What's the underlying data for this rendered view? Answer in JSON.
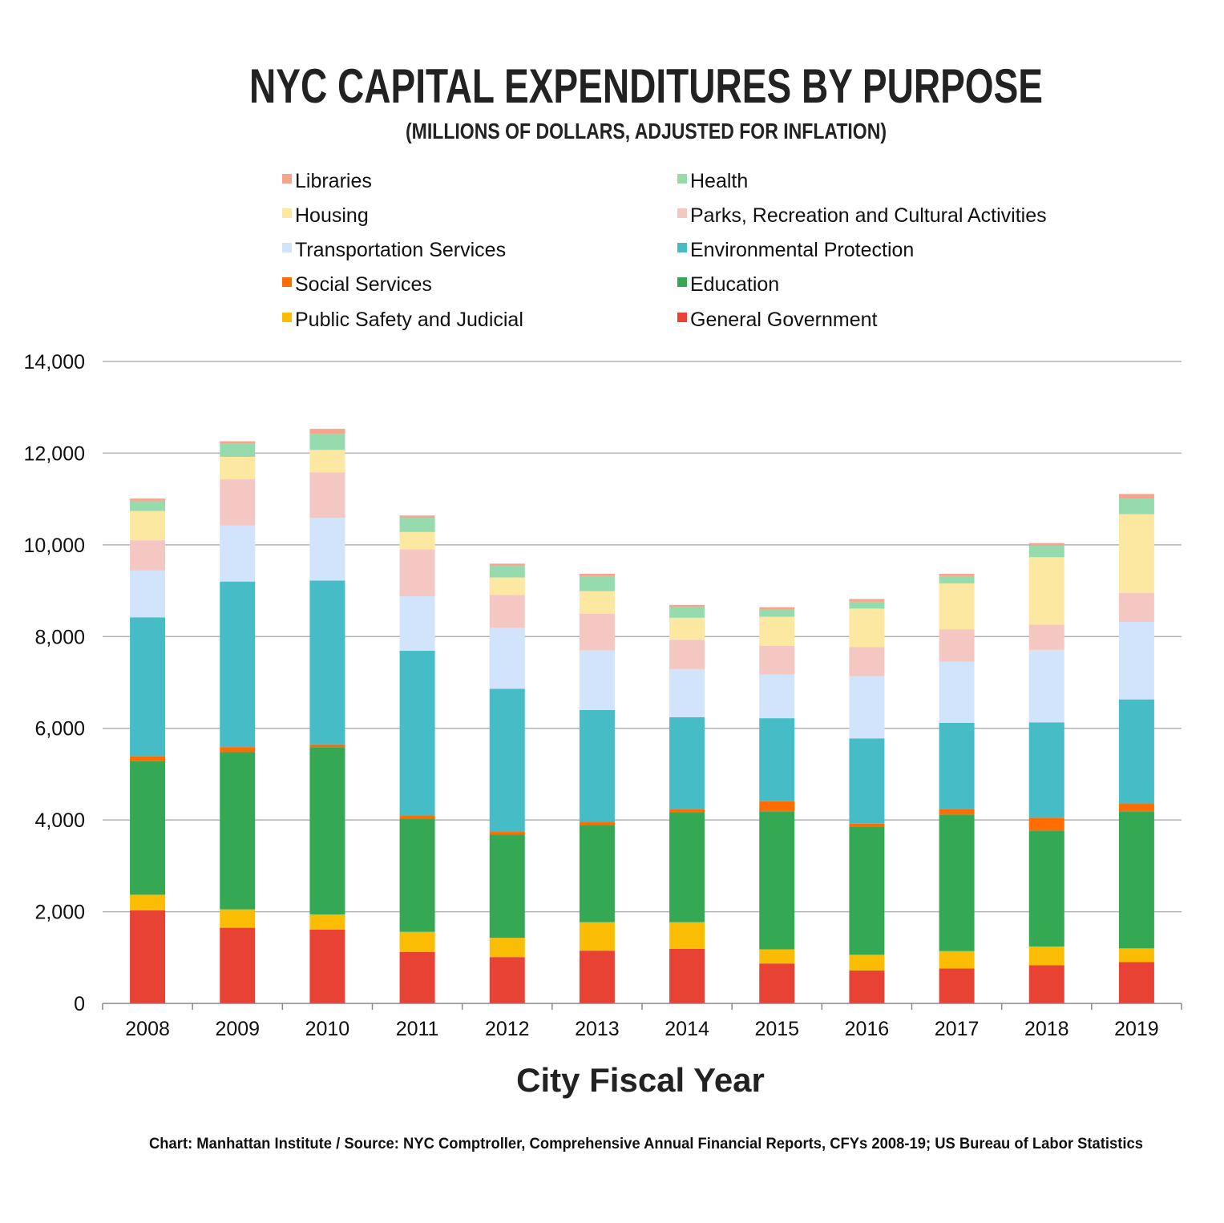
{
  "chart_data": {
    "type": "bar",
    "stacked": true,
    "title": "NYC CAPITAL EXPENDITURES BY PURPOSE",
    "subtitle": "(MILLIONS OF DOLLARS, ADJUSTED FOR INFLATION)",
    "xlabel": "City Fiscal Year",
    "ylabel": "",
    "ylim": [
      0,
      14000
    ],
    "yticks": [
      0,
      2000,
      4000,
      6000,
      8000,
      10000,
      12000,
      14000
    ],
    "ytick_labels": [
      "0",
      "2,000",
      "4,000",
      "6,000",
      "8,000",
      "10,000",
      "12,000",
      "14,000"
    ],
    "grid": true,
    "legend_position": "top",
    "categories": [
      "2008",
      "2009",
      "2010",
      "2011",
      "2012",
      "2013",
      "2014",
      "2015",
      "2016",
      "2017",
      "2018",
      "2019"
    ],
    "series": [
      {
        "name": "General Government",
        "color": "#e84235",
        "values": [
          2030,
          1650,
          1610,
          1120,
          1010,
          1150,
          1190,
          870,
          720,
          760,
          830,
          900
        ]
      },
      {
        "name": "Public Safety and Judicial",
        "color": "#fbbc04",
        "values": [
          340,
          400,
          330,
          440,
          420,
          620,
          580,
          310,
          340,
          380,
          410,
          300
        ]
      },
      {
        "name": "Education",
        "color": "#34a853",
        "values": [
          2920,
          3430,
          3650,
          2470,
          2250,
          2120,
          2400,
          3010,
          2800,
          2980,
          2530,
          2990
        ]
      },
      {
        "name": "Social Services",
        "color": "#ff6d00",
        "values": [
          100,
          110,
          60,
          60,
          60,
          60,
          60,
          220,
          60,
          110,
          280,
          170
        ]
      },
      {
        "name": "Environmental Protection",
        "color": "#46bdc6",
        "values": [
          3030,
          3610,
          3570,
          3600,
          3120,
          2450,
          2010,
          1810,
          1860,
          1890,
          2080,
          2270
        ]
      },
      {
        "name": "Transportation Services",
        "color": "#d2e3fc",
        "values": [
          1020,
          1220,
          1370,
          1190,
          1330,
          1300,
          1050,
          950,
          1360,
          1330,
          1580,
          1690
        ]
      },
      {
        "name": "Parks, Recreation and Cultural Activities",
        "color": "#f4c7c3",
        "values": [
          660,
          1010,
          990,
          1020,
          720,
          800,
          640,
          630,
          630,
          710,
          550,
          630
        ]
      },
      {
        "name": "Housing",
        "color": "#fce8a0",
        "values": [
          640,
          490,
          490,
          380,
          380,
          490,
          480,
          630,
          840,
          1000,
          1470,
          1720
        ]
      },
      {
        "name": "Health",
        "color": "#95dbae",
        "values": [
          220,
          290,
          350,
          310,
          250,
          330,
          230,
          160,
          150,
          160,
          260,
          340
        ]
      },
      {
        "name": "Libraries",
        "color": "#f6a48c",
        "values": [
          50,
          50,
          110,
          50,
          50,
          50,
          50,
          50,
          60,
          50,
          50,
          100
        ]
      }
    ],
    "legend": {
      "left": [
        "Libraries",
        "Housing",
        "Transportation Services",
        "Social Services",
        "Public Safety and Judicial"
      ],
      "right": [
        "Health",
        "Parks, Recreation and Cultural Activities",
        "Environmental Protection",
        "Education",
        "General Government"
      ]
    },
    "source_note": "Chart: Manhattan Institute  /  Source:  NYC Comptroller, Comprehensive Annual Financial Reports, CFYs 2008-19; US Bureau of Labor Statistics"
  }
}
